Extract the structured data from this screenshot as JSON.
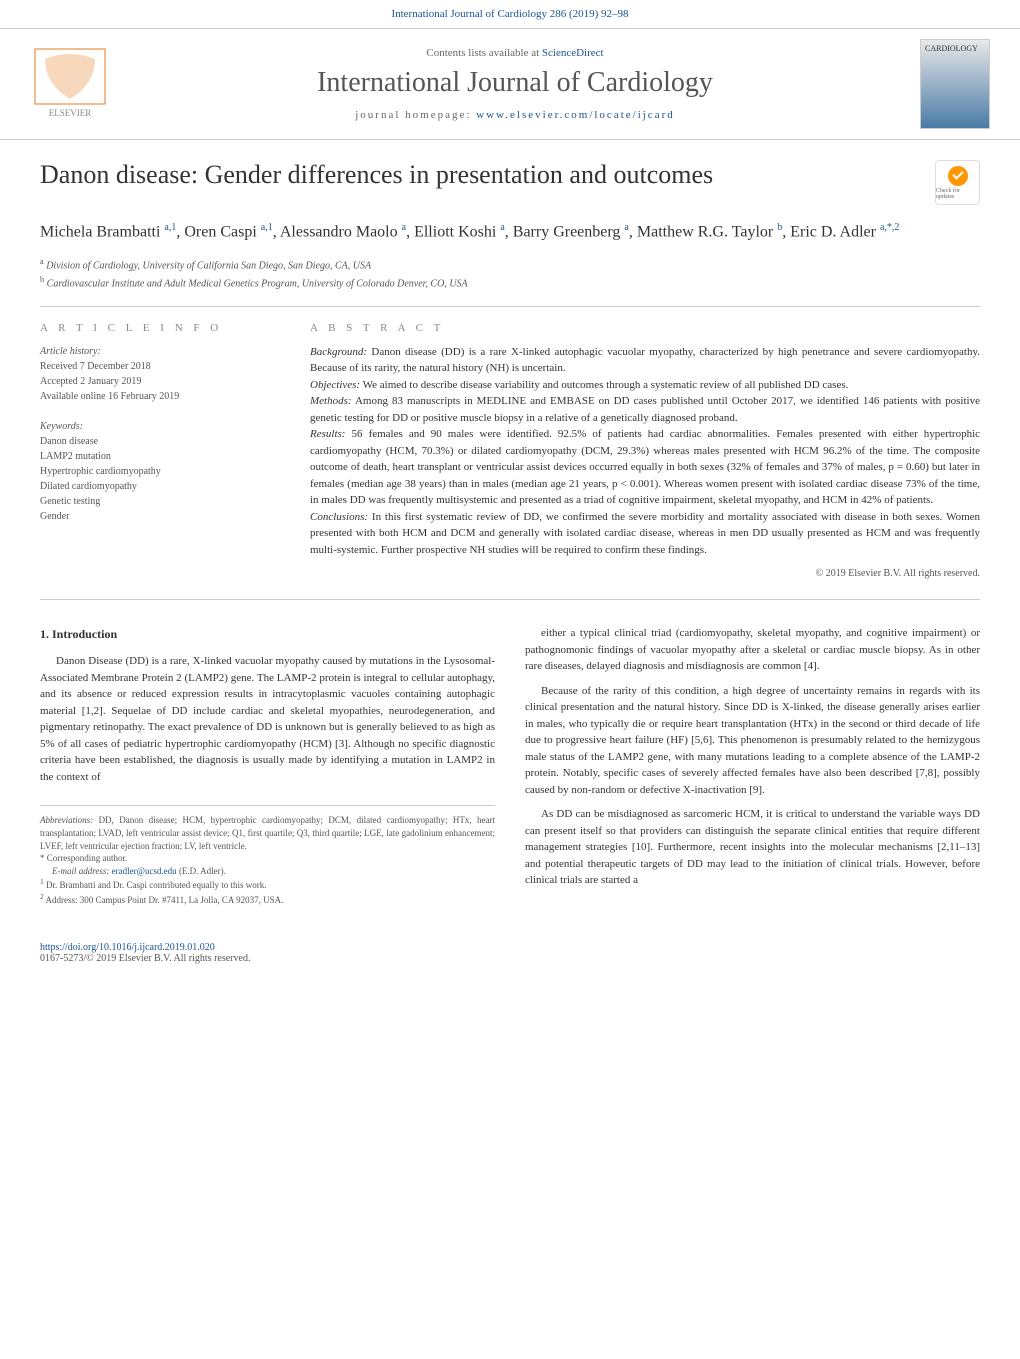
{
  "header": {
    "top_link": "International Journal of Cardiology 286 (2019) 92–98",
    "contents_text": "Contents lists available at ",
    "contents_link": "ScienceDirect",
    "journal_title": "International Journal of Cardiology",
    "homepage_label": "journal homepage: ",
    "homepage_url": "www.elsevier.com/locate/ijcard",
    "cover_label": "CARDIOLOGY"
  },
  "article": {
    "title": "Danon disease: Gender differences in presentation and outcomes",
    "check_updates": "Check for updates",
    "authors_html": "Michela Brambatti <sup>a,1</sup>, Oren Caspi <sup>a,1</sup>, Alessandro Maolo <sup>a</sup>, Elliott Koshi <sup>a</sup>, Barry Greenberg <sup>a</sup>, Matthew R.G. Taylor <sup>b</sup>, Eric D. Adler <sup>a,*,2</sup>",
    "affiliations": {
      "a": "Division of Cardiology, University of California San Diego, San Diego, CA, USA",
      "b": "Cardiovascular Institute and Adult Medical Genetics Program, University of Colorado Denver, CO, USA"
    }
  },
  "info": {
    "heading": "A R T I C L E   I N F O",
    "history_label": "Article history:",
    "received": "Received 7 December 2018",
    "accepted": "Accepted 2 January 2019",
    "online": "Available online 16 February 2019",
    "keywords_label": "Keywords:",
    "keywords": [
      "Danon disease",
      "LAMP2 mutation",
      "Hypertrophic cardiomyopathy",
      "Dilated cardiomyopathy",
      "Genetic testing",
      "Gender"
    ]
  },
  "abstract": {
    "heading": "A B S T R A C T",
    "background_label": "Background:",
    "background": "Danon disease (DD) is a rare X-linked autophagic vacuolar myopathy, characterized by high penetrance and severe cardiomyopathy. Because of its rarity, the natural history (NH) is uncertain.",
    "objectives_label": "Objectives:",
    "objectives": "We aimed to describe disease variability and outcomes through a systematic review of all published DD cases.",
    "methods_label": "Methods:",
    "methods": "Among 83 manuscripts in MEDLINE and EMBASE on DD cases published until October 2017, we identified 146 patients with positive genetic testing for DD or positive muscle biopsy in a relative of a genetically diagnosed proband.",
    "results_label": "Results:",
    "results": "56 females and 90 males were identified. 92.5% of patients had cardiac abnormalities. Females presented with either hypertrophic cardiomyopathy (HCM, 70.3%) or dilated cardiomyopathy (DCM, 29.3%) whereas males presented with HCM 96.2% of the time. The composite outcome of death, heart transplant or ventricular assist devices occurred equally in both sexes (32% of females and 37% of males, p = 0.60) but later in females (median age 38 years) than in males (median age 21 years, p < 0.001). Whereas women present with isolated cardiac disease 73% of the time, in males DD was frequently multisystemic and presented as a triad of cognitive impairment, skeletal myopathy, and HCM in 42% of patients.",
    "conclusions_label": "Conclusions:",
    "conclusions": "In this first systematic review of DD, we confirmed the severe morbidity and mortality associated with disease in both sexes. Women presented with both HCM and DCM and generally with isolated cardiac disease, whereas in men DD usually presented as HCM and was frequently multi-systemic. Further prospective NH studies will be required to confirm these findings.",
    "copyright": "© 2019 Elsevier B.V. All rights reserved."
  },
  "content": {
    "section_number": "1.",
    "section_title": "Introduction",
    "left_p1": "Danon Disease (DD) is a rare, X-linked vacuolar myopathy caused by mutations in the Lysosomal-Associated Membrane Protein 2 (LAMP2) gene. The LAMP-2 protein is integral to cellular autophagy, and its absence or reduced expression results in intracytoplasmic vacuoles containing autophagic material [1,2]. Sequelae of DD include cardiac and skeletal myopathies, neurodegeneration, and pigmentary retinopathy. The exact prevalence of DD is unknown but is generally believed to as high as 5% of all cases of pediatric hypertrophic cardiomyopathy (HCM) [3]. Although no specific diagnostic criteria have been established, the diagnosis is usually made by identifying a mutation in LAMP2 in the context of",
    "right_p1": "either a typical clinical triad (cardiomyopathy, skeletal myopathy, and cognitive impairment) or pathognomonic findings of vacuolar myopathy after a skeletal or cardiac muscle biopsy. As in other rare diseases, delayed diagnosis and misdiagnosis are common [4].",
    "right_p2": "Because of the rarity of this condition, a high degree of uncertainty remains in regards with its clinical presentation and the natural history. Since DD is X-linked, the disease generally arises earlier in males, who typically die or require heart transplantation (HTx) in the second or third decade of life due to progressive heart failure (HF) [5,6]. This phenomenon is presumably related to the hemizygous male status of the LAMP2 gene, with many mutations leading to a complete absence of the LAMP-2 protein. Notably, specific cases of severely affected females have also been described [7,8], possibly caused by non-random or defective X-inactivation [9].",
    "right_p3": "As DD can be misdiagnosed as sarcomeric HCM, it is critical to understand the variable ways DD can present itself so that providers can distinguish the separate clinical entities that require different management strategies [10]. Furthermore, recent insights into the molecular mechanisms [2,11–13] and potential therapeutic targets of DD may lead to the initiation of clinical trials. However, before clinical trials are started a"
  },
  "footnotes": {
    "abbrev_label": "Abbreviations:",
    "abbrev": "DD, Danon disease; HCM, hypertrophic cardiomyopathy; DCM, dilated cardiomyopathy; HTx, heart transplantation; LVAD, left ventricular assist device; Q1, first quartile; Q3, third quartile; LGE, late gadolinium enhancement; LVEF, left ventricular ejection fraction; LV, left ventricle.",
    "corresp": "Corresponding author.",
    "email_label": "E-mail address:",
    "email": "eradler@ucsd.edu",
    "email_name": "(E.D. Adler).",
    "fn1": "Dr. Brambatti and Dr. Caspi contributed equally to this work.",
    "fn2": "Address: 300 Campus Point Dr. #7411, La Jolla, CA 92037, USA."
  },
  "footer": {
    "doi": "https://doi.org/10.1016/j.ijcard.2019.01.020",
    "issn": "0167-5273/© 2019 Elsevier B.V. All rights reserved."
  }
}
